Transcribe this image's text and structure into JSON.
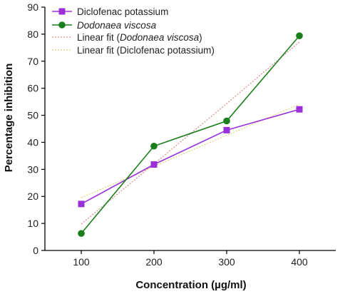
{
  "chart_data": {
    "type": "line",
    "x": [
      100,
      200,
      300,
      400
    ],
    "series": [
      {
        "name": "Diclofenac potassium",
        "values": [
          17.2,
          31.8,
          44.5,
          52.2
        ],
        "color": "#9b30d9",
        "marker": "square"
      },
      {
        "name": "Dodonaea viscosa",
        "values": [
          6.3,
          38.6,
          47.9,
          79.4
        ],
        "color": "#1a7f1a",
        "marker": "circle"
      }
    ],
    "fits": [
      {
        "name": "Linear fit (Dodonaea viscosa)",
        "series_index": 1,
        "values": [
          9.8,
          32.0,
          54.3,
          77.1
        ],
        "color": "#d98a8a",
        "style": "dotted"
      },
      {
        "name": "Linear fit (Diclofenac potassium)",
        "series_index": 0,
        "values": [
          19.5,
          31.1,
          42.6,
          54.1
        ],
        "color": "#e6d27a",
        "style": "dotted"
      }
    ],
    "legend": [
      {
        "text": "Diclofenac potassium",
        "italic": []
      },
      {
        "text": "Dodonaea viscosa",
        "italic": [
          0,
          16
        ]
      },
      {
        "text": "Linear fit (Dodonaea viscosa)",
        "italic": [
          12,
          28
        ]
      },
      {
        "text": "Linear fit (Diclofenac potassium)",
        "italic": []
      }
    ],
    "xlabel": "Concentration (µg/ml)",
    "ylabel": "Percentage inhibition",
    "xlim": [
      50,
      450
    ],
    "ylim": [
      0,
      90
    ],
    "xticks": [
      "100",
      "200",
      "300",
      "400"
    ],
    "yticks": [
      "0",
      "10",
      "20",
      "30",
      "40",
      "50",
      "60",
      "70",
      "80",
      "90"
    ],
    "legend_position": "top-left",
    "grid": false
  }
}
